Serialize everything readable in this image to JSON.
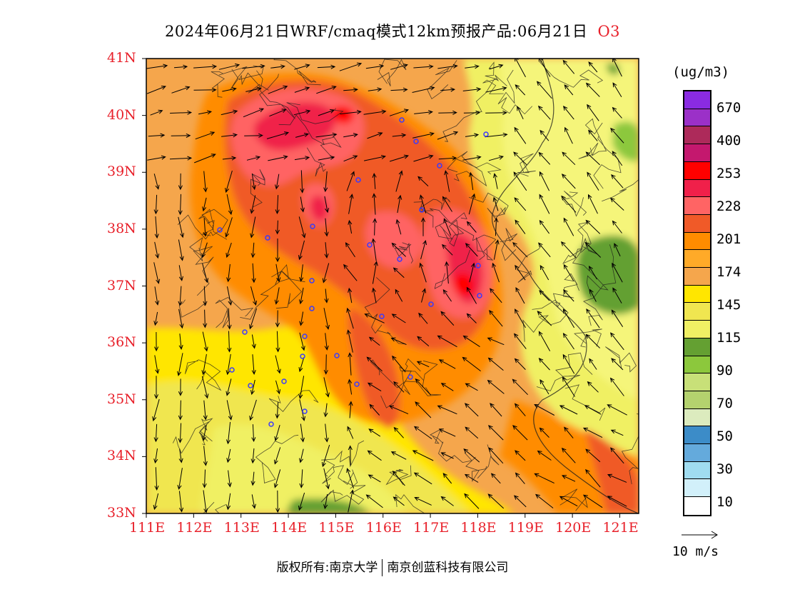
{
  "title": {
    "main": "2024年06月21日WRF/cmaq模式12km预报产品:06月21日",
    "species": "O3"
  },
  "axes": {
    "lat_labels": [
      "41N",
      "40N",
      "39N",
      "38N",
      "37N",
      "36N",
      "35N",
      "34N",
      "33N"
    ],
    "lon_labels": [
      "111E",
      "112E",
      "113E",
      "114E",
      "115E",
      "116E",
      "117E",
      "118E",
      "119E",
      "120E",
      "121E"
    ],
    "lat_range": [
      33,
      41
    ],
    "lon_range": [
      111,
      121.4
    ]
  },
  "colorbar": {
    "unit": "(ug/m3)",
    "colors": [
      "#8a2be2",
      "#9b30c8",
      "#ad2a5a",
      "#c4186e",
      "#ff0000",
      "#f0204a",
      "#ff6464",
      "#f05a28",
      "#ff8c00",
      "#ffaa28",
      "#f5a64c",
      "#ffe600",
      "#f0e650",
      "#f0f064",
      "#64a032",
      "#8cc83c",
      "#c8e078",
      "#b4d26e",
      "#dcebbe",
      "#3c8cc8",
      "#64aadc",
      "#a0dcf0",
      "#d2f0fa",
      "#ffffff"
    ],
    "labels": [
      "670",
      "400",
      "253",
      "228",
      "201",
      "174",
      "145",
      "115",
      "90",
      "70",
      "50",
      "30",
      "10"
    ]
  },
  "wind_reference": {
    "label": "10 m/s"
  },
  "copyright": {
    "left": "版权所有:南京大学",
    "right": "南京创蓝科技有限公司"
  }
}
